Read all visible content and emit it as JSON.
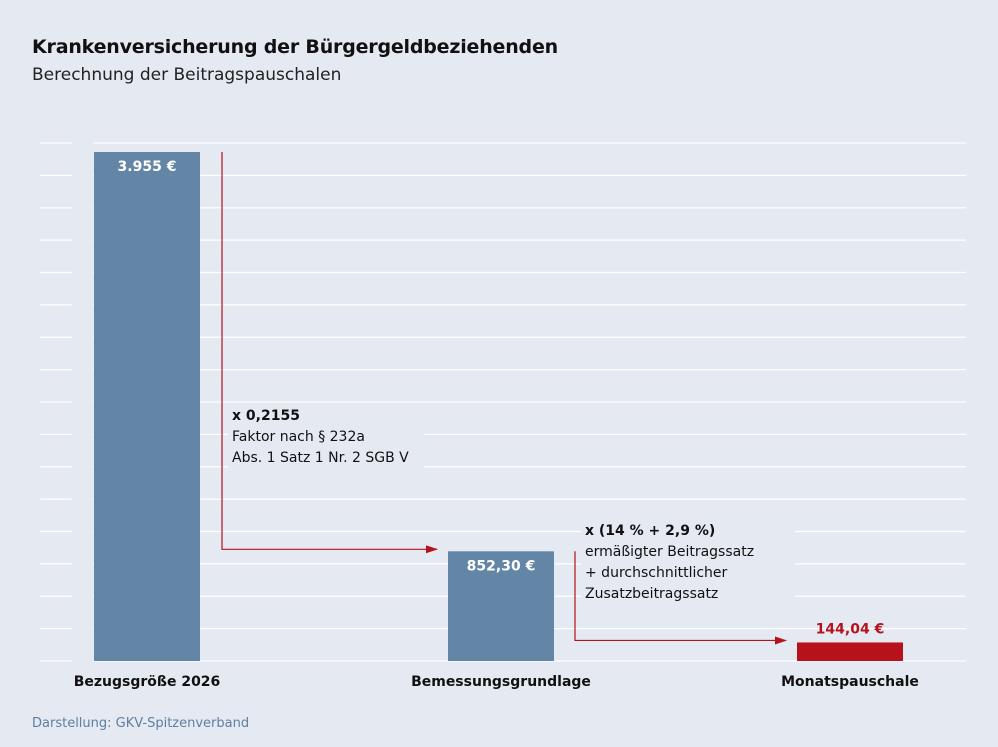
{
  "title": "Krankenversicherung der Bürgergeldbeziehenden",
  "subtitle": "Berechnung der Beitragspauschalen",
  "source": "Darstellung: GKV-Spitzenverband",
  "colors": {
    "bar": "#6486a6",
    "highlight": "#b5121b",
    "grid": "#ffffff",
    "background": "#e5e9f2"
  },
  "chart_data": {
    "type": "bar",
    "categories": [
      "Bezugsgröße 2026",
      "Bemessungsgrundlage",
      "Monatspauschale"
    ],
    "values": [
      3955,
      852.3,
      144.04
    ],
    "value_labels": [
      "3.955 €",
      "852,30 €",
      "144,04 €"
    ],
    "highlight_index": 2,
    "grid": true,
    "annotations": [
      {
        "lines": [
          "x 0,2155",
          "Faktor nach § 232a",
          "Abs. 1 Satz 1 Nr. 2 SGB V"
        ],
        "from": 0,
        "to": 1
      },
      {
        "lines": [
          "x (14 % + 2,9 %)",
          "ermäßigter Beitragssatz",
          "+ durchschnittlicher",
          "Zusatzbeitragssatz"
        ],
        "from": 1,
        "to": 2
      }
    ]
  }
}
